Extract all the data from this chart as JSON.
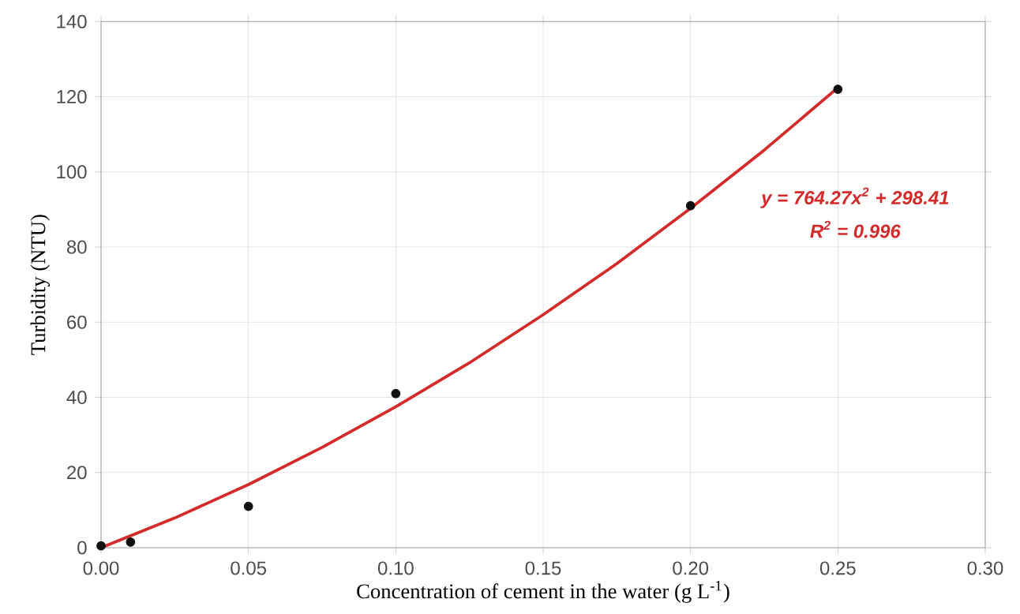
{
  "chart_data": {
    "type": "scatter",
    "xlabel": "Concentration of cement in the water (g L$^{-1}$)",
    "ylabel": "Turbidity (NTU)",
    "xlim": [
      0,
      0.3
    ],
    "ylim": [
      0,
      140
    ],
    "xticks": [
      {
        "value": 0,
        "label": "0.00"
      },
      {
        "value": 0.05,
        "label": "0.05"
      },
      {
        "value": 0.1,
        "label": "0.10"
      },
      {
        "value": 0.15,
        "label": "0.15"
      },
      {
        "value": 0.2,
        "label": "0.20"
      },
      {
        "value": 0.25,
        "label": "0.25"
      },
      {
        "value": 0.3,
        "label": "0.30"
      }
    ],
    "yticks": [
      0,
      20,
      40,
      60,
      80,
      100,
      120,
      140
    ],
    "grid": true,
    "series": [
      {
        "color": "#111111",
        "marker": "circle",
        "x": [
          0,
          0.01,
          0.05,
          0.1,
          0.2,
          0.25
        ],
        "values": [
          0.5,
          1.5,
          11,
          41,
          91,
          122
        ]
      },
      {
        "type": "line",
        "color": "#d42a2a",
        "x": [
          0,
          0.025,
          0.05,
          0.075,
          0.1,
          0.125,
          0.15,
          0.175,
          0.2,
          0.225,
          0.25
        ],
        "values": [
          0,
          7.9,
          16.8,
          26.7,
          37.5,
          49.2,
          62,
          75.6,
          90.3,
          105.8,
          122.4
        ]
      }
    ],
    "annotations": [
      "y = 764.27x$^{2}$ + 298.41",
      "R$^{2}$ = 0.996"
    ]
  }
}
